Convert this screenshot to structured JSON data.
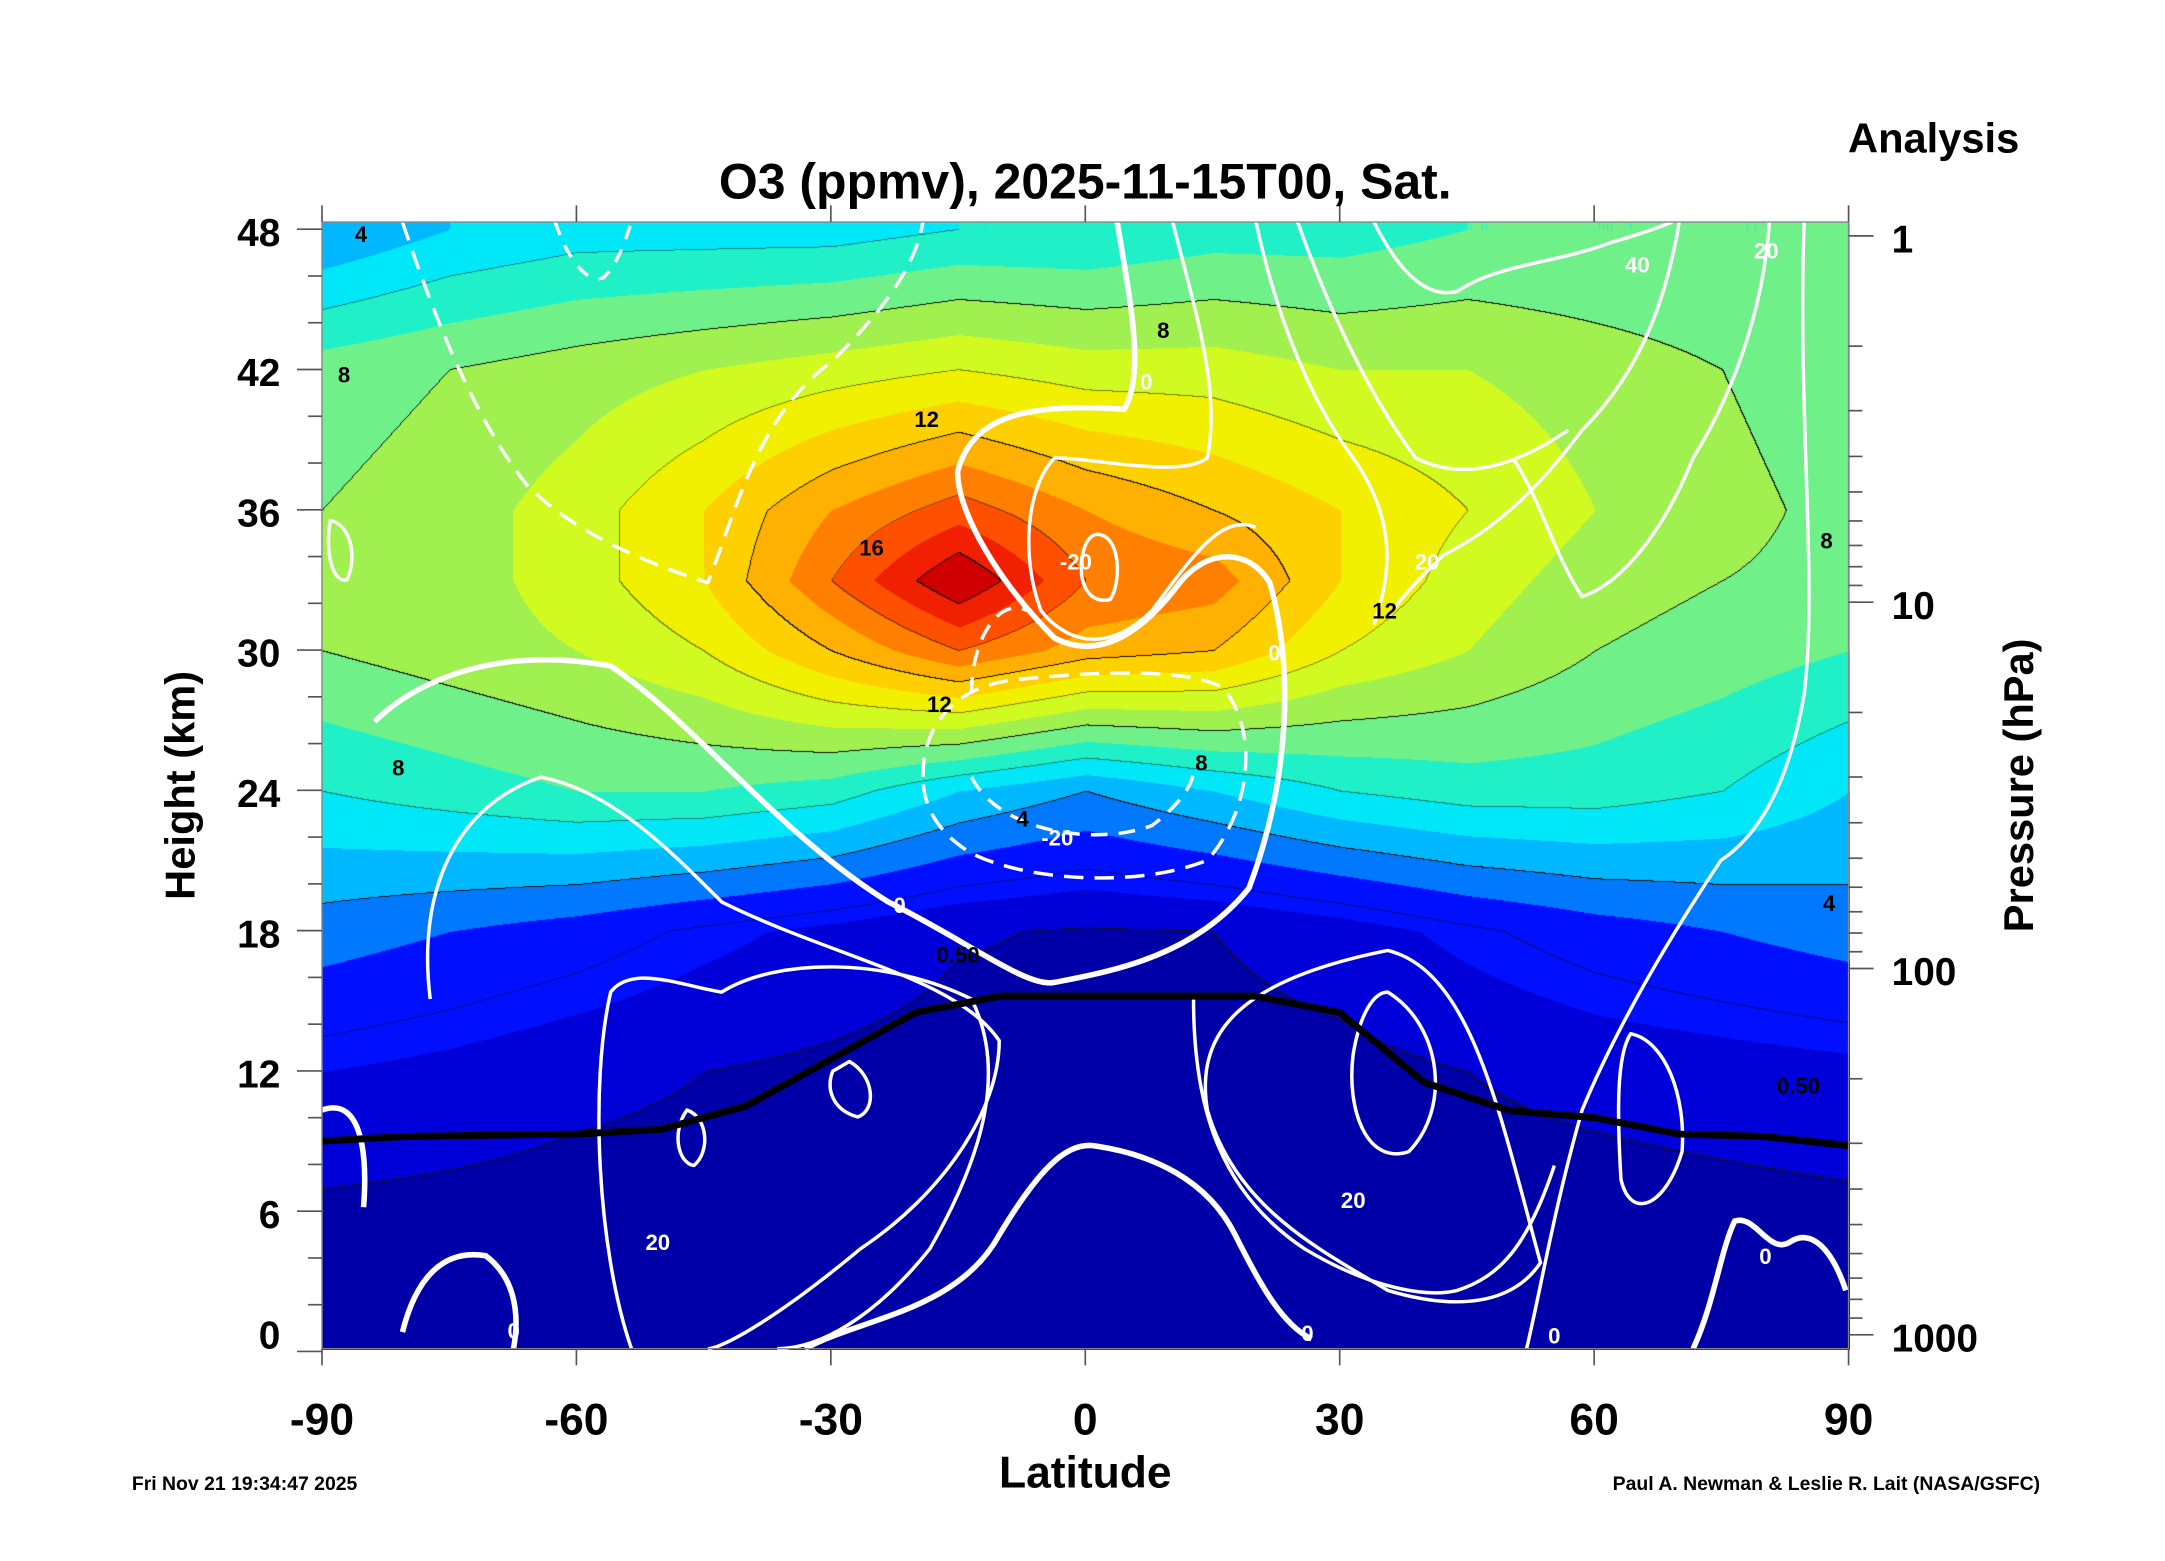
{
  "chart_data": {
    "type": "heatmap",
    "title": "O3 (ppmv), 2025-11-15T00, Sat.",
    "corner_label": "Analysis",
    "xlabel": "Latitude",
    "ylabel": "Height (km)",
    "y2label": "Pressure (hPa)",
    "xlim": [
      -90,
      90
    ],
    "ylim": [
      0,
      48
    ],
    "x_ticks": [
      "-90",
      "-60",
      "-30",
      "0",
      "30",
      "60",
      "90"
    ],
    "y_ticks": [
      "0",
      "6",
      "12",
      "18",
      "24",
      "30",
      "36",
      "42",
      "48"
    ],
    "y2_ticks": [
      "1",
      "10",
      "100",
      "1000"
    ],
    "footer_left": "Fri Nov 21 19:34:47 2025",
    "footer_right": "Paul A. Newman & Leslie R. Lait (NASA/GSFC)",
    "grid_latitudes": [
      -90,
      -75,
      -60,
      -45,
      -30,
      -15,
      0,
      15,
      30,
      45,
      60,
      75,
      90
    ],
    "grid_heights_km": [
      0,
      6,
      12,
      18,
      24,
      30,
      33,
      36,
      42,
      48
    ],
    "ozone_ppmv": [
      [
        0.05,
        0.05,
        0.05,
        0.05,
        0.05,
        0.05,
        0.05,
        0.05,
        0.05,
        0.05,
        0.05,
        0.05,
        0.05
      ],
      [
        0.3,
        0.2,
        0.1,
        0.1,
        0.1,
        0.1,
        0.1,
        0.1,
        0.1,
        0.1,
        0.1,
        0.2,
        0.3
      ],
      [
        1.5,
        1.2,
        0.8,
        0.5,
        0.3,
        0.1,
        0.05,
        0.1,
        0.2,
        0.5,
        0.8,
        1.0,
        1.2
      ],
      [
        3.5,
        3,
        2.5,
        1.8,
        1.2,
        0.6,
        0.4,
        0.5,
        1.0,
        1.8,
        2.5,
        3,
        3.5
      ],
      [
        6,
        6.5,
        7,
        7,
        6.5,
        5,
        4,
        5,
        6,
        6.5,
        6.5,
        6,
        5
      ],
      [
        8,
        8.5,
        9,
        10,
        12,
        14,
        12.5,
        12,
        10,
        9,
        8,
        7.5,
        7
      ],
      [
        8,
        8.5,
        9.5,
        11,
        14,
        17,
        14,
        13.5,
        11,
        9.5,
        8.5,
        8,
        7.5
      ],
      [
        8,
        8.5,
        9.5,
        11,
        13,
        14.5,
        13,
        12,
        11,
        10,
        9,
        8.5,
        7.5
      ],
      [
        7.5,
        8,
        8.5,
        9,
        9.5,
        10,
        9.5,
        9.5,
        9,
        9,
        8.5,
        8,
        7
      ],
      [
        4,
        5,
        5.5,
        5.5,
        5.5,
        6,
        6,
        6.5,
        6.5,
        7,
        7,
        7,
        7
      ]
    ],
    "tropopause": {
      "lat": [
        -90,
        -80,
        -60,
        -50,
        -40,
        -30,
        -20,
        -10,
        0,
        10,
        20,
        30,
        40,
        50,
        60,
        70,
        80,
        90
      ],
      "height_km": [
        9,
        9.2,
        9.3,
        9.5,
        10.5,
        12.5,
        14.5,
        15.2,
        15.2,
        15.2,
        15.2,
        14.5,
        11.5,
        10.3,
        10,
        9.3,
        9.2,
        8.8
      ]
    },
    "ozone_contour_levels": [
      "0.50",
      "4",
      "8",
      "12",
      "16"
    ],
    "wind_contour_levels": [
      "-20",
      "0",
      "20",
      "40"
    ],
    "contour_labels": [
      {
        "text": "4",
        "lat": -85.4,
        "h": 47.8,
        "white": false
      },
      {
        "text": "8",
        "lat": -87.4,
        "h": 41.8,
        "white": false
      },
      {
        "text": "12",
        "lat": -18.7,
        "h": 39.9,
        "white": false
      },
      {
        "text": "16",
        "lat": -25.2,
        "h": 34.4,
        "white": false
      },
      {
        "text": "8",
        "lat": 9.2,
        "h": 43.7,
        "white": false
      },
      {
        "text": "0",
        "lat": 7.2,
        "h": 41.5,
        "white": true
      },
      {
        "text": "-20",
        "lat": -1.1,
        "h": 33.8,
        "white": true
      },
      {
        "text": "12",
        "lat": -17.2,
        "h": 27.7,
        "white": false
      },
      {
        "text": "8",
        "lat": 13.7,
        "h": 25.2,
        "white": false
      },
      {
        "text": "4",
        "lat": -7.4,
        "h": 22.8,
        "white": false
      },
      {
        "text": "-20",
        "lat": -3.3,
        "h": 22.0,
        "white": true
      },
      {
        "text": "0",
        "lat": -21.9,
        "h": 19.1,
        "white": true
      },
      {
        "text": "0.50",
        "lat": -15,
        "h": 17,
        "white": false
      },
      {
        "text": "12",
        "lat": 35.3,
        "h": 31.7,
        "white": false
      },
      {
        "text": "20",
        "lat": 40.3,
        "h": 33.8,
        "white": true
      },
      {
        "text": "0",
        "lat": 22.3,
        "h": 29.9,
        "white": true
      },
      {
        "text": "40",
        "lat": 65.1,
        "h": 46.5,
        "white": true
      },
      {
        "text": "20",
        "lat": 80.3,
        "h": 47.1,
        "white": true
      },
      {
        "text": "8",
        "lat": 87.4,
        "h": 34.7,
        "white": false
      },
      {
        "text": "4",
        "lat": 87.7,
        "h": 19.2,
        "white": false
      },
      {
        "text": "0.50",
        "lat": 84.1,
        "h": 11.4,
        "white": false
      },
      {
        "text": "8",
        "lat": -81,
        "h": 25,
        "white": false
      },
      {
        "text": "20",
        "lat": -50.4,
        "h": 4.7,
        "white": true
      },
      {
        "text": "20",
        "lat": 31.6,
        "h": 6.5,
        "white": true
      },
      {
        "text": "0",
        "lat": 26.2,
        "h": 0.8,
        "white": true
      },
      {
        "text": "0",
        "lat": 55.3,
        "h": 0.7,
        "white": true
      },
      {
        "text": "0",
        "lat": 80.2,
        "h": 4.1,
        "white": true
      },
      {
        "text": "0",
        "lat": -67.4,
        "h": 0.9,
        "white": true
      }
    ],
    "colormap": [
      {
        "v": 0,
        "c": "#0000a8"
      },
      {
        "v": 0.5,
        "c": "#0000d8"
      },
      {
        "v": 1.5,
        "c": "#0010ff"
      },
      {
        "v": 3,
        "c": "#0078ff"
      },
      {
        "v": 4,
        "c": "#00b8ff"
      },
      {
        "v": 5,
        "c": "#00e8f8"
      },
      {
        "v": 6,
        "c": "#20f0c8"
      },
      {
        "v": 7,
        "c": "#70f088"
      },
      {
        "v": 8,
        "c": "#a0f050"
      },
      {
        "v": 9,
        "c": "#d0fa20"
      },
      {
        "v": 10,
        "c": "#f0f000"
      },
      {
        "v": 11,
        "c": "#ffd000"
      },
      {
        "v": 12,
        "c": "#ffb000"
      },
      {
        "v": 13,
        "c": "#ff8000"
      },
      {
        "v": 14,
        "c": "#ff5000"
      },
      {
        "v": 15,
        "c": "#f02000"
      },
      {
        "v": 16,
        "c": "#d00000"
      },
      {
        "v": 17,
        "c": "#a00000"
      }
    ]
  }
}
